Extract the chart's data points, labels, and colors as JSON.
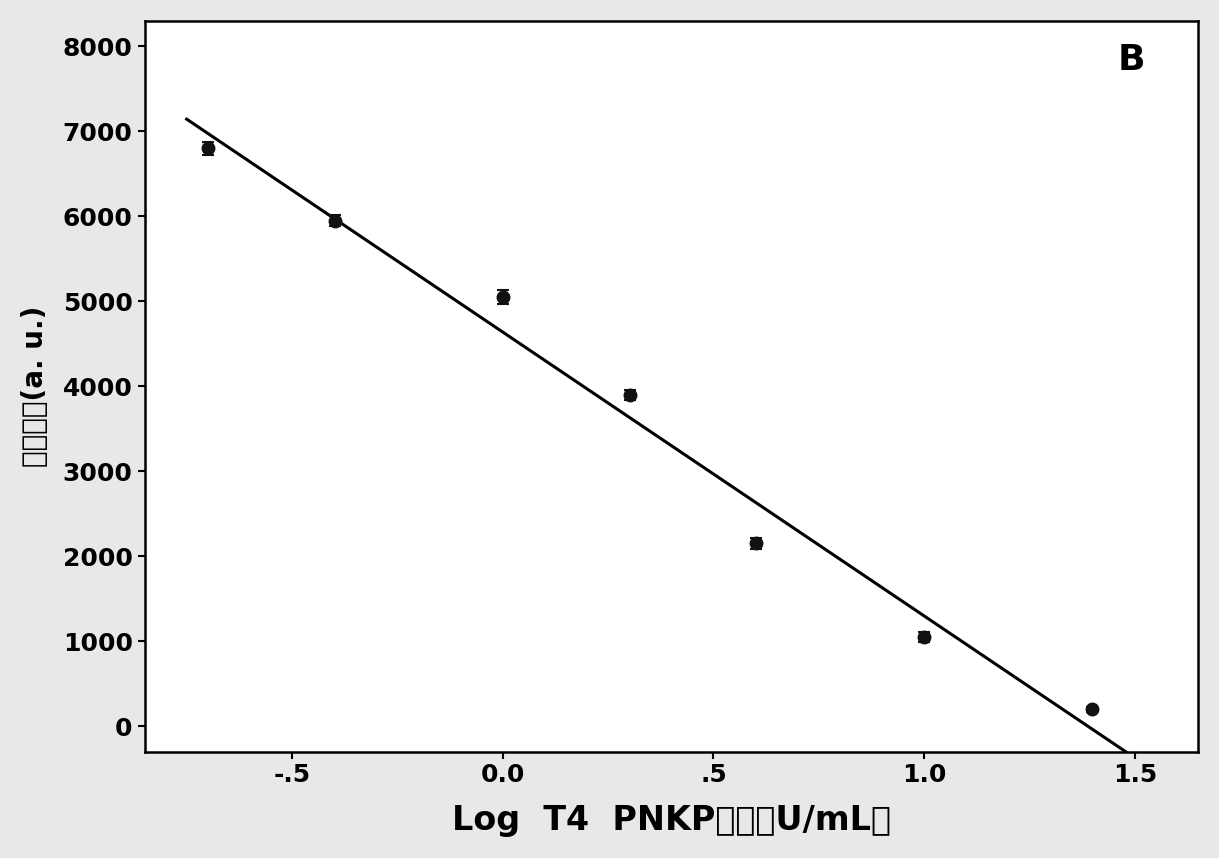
{
  "x_data": [
    -0.699,
    -0.398,
    0.0,
    0.301,
    0.602,
    1.0,
    1.398
  ],
  "y_data": [
    6800,
    5950,
    5050,
    3900,
    2150,
    1050,
    200
  ],
  "y_err": [
    80,
    70,
    80,
    60,
    60,
    60,
    30
  ],
  "trendline_x_start": -0.75,
  "trendline_x_end": 1.5,
  "xlabel_latin": "Log  T4  PNKP",
  "xlabel_chinese": "浓度",
  "xlabel_unit": "（U/mL）",
  "ylabel_latin": "(a. u.)",
  "ylabel_chinese": "荆光强度",
  "xlim": [
    -0.85,
    1.65
  ],
  "ylim": [
    -300,
    8300
  ],
  "xticks": [
    -0.5,
    0.0,
    0.5,
    1.0,
    1.5
  ],
  "xticklabels": [
    "-.5",
    "0.0",
    ".5",
    "1.0",
    "1.5"
  ],
  "yticks": [
    0,
    1000,
    2000,
    3000,
    4000,
    5000,
    6000,
    7000,
    8000
  ],
  "panel_label": "B",
  "bg_color": "#e8e8e8",
  "plot_bg_color": "#ffffff",
  "line_color": "#000000",
  "marker_color": "#111111",
  "xlabel_fontsize": 24,
  "ylabel_latin_fontsize": 20,
  "ylabel_chinese_fontsize": 22,
  "tick_fontsize": 18,
  "panel_label_fontsize": 26
}
